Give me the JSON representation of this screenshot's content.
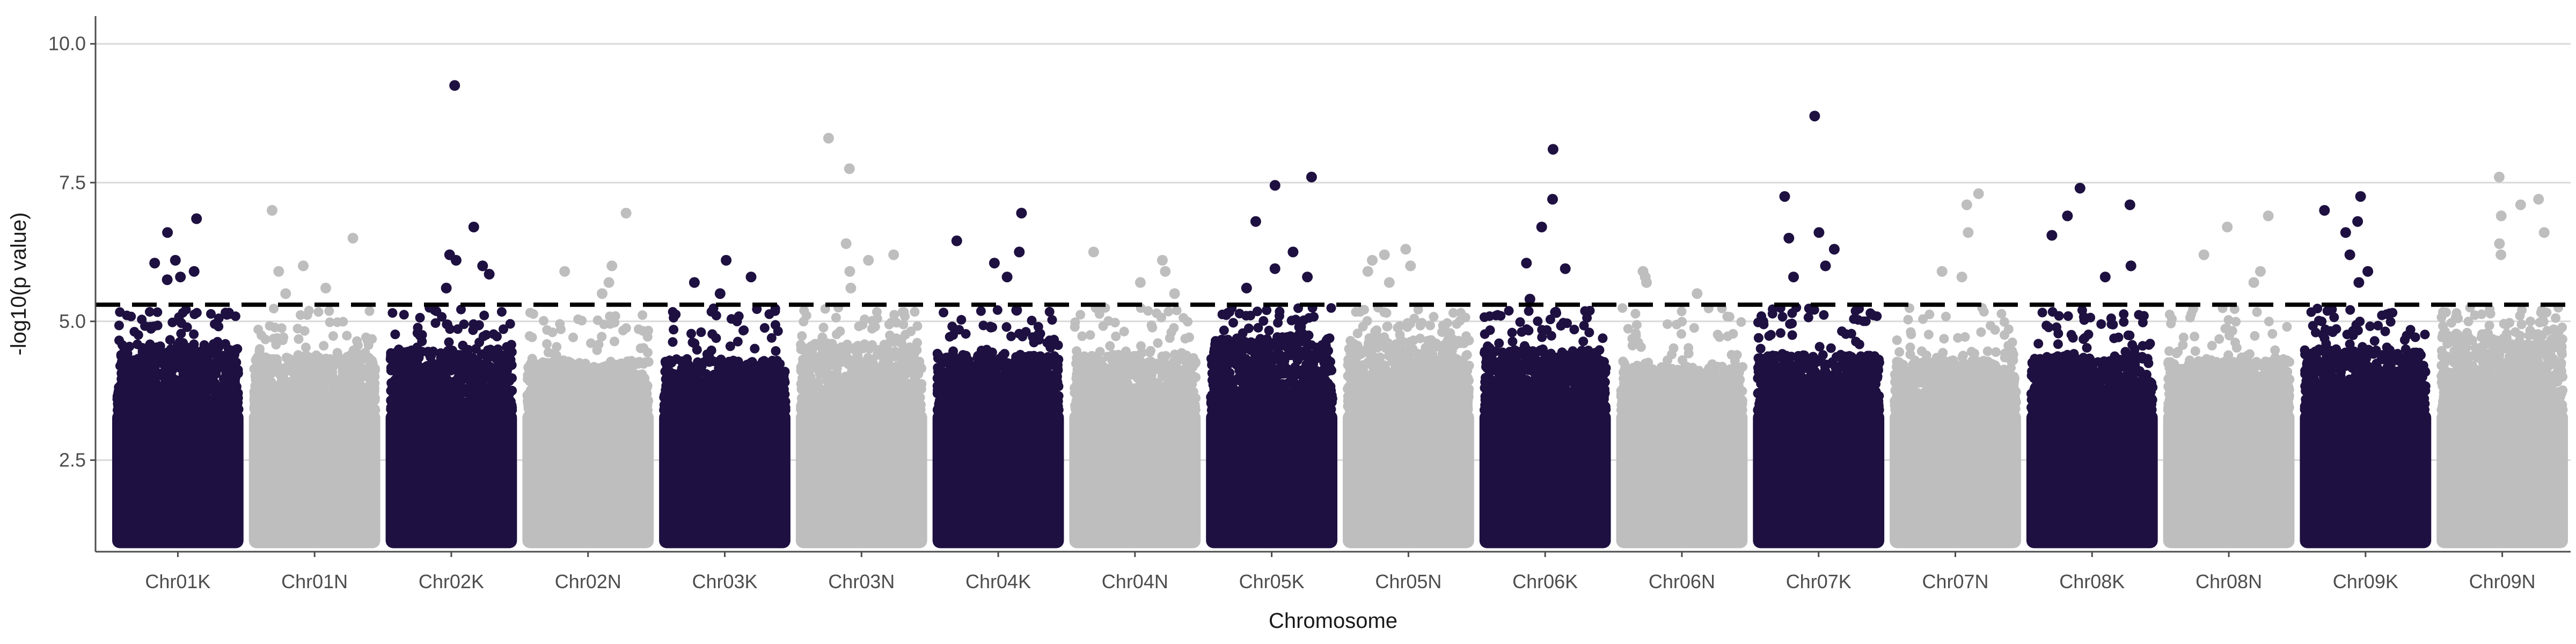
{
  "chart_data": {
    "type": "scatter",
    "subtype": "manhattan",
    "title": "",
    "xlabel": "Chromosome",
    "ylabel": "-log10(p value)",
    "ylim": [
      0.85,
      10.5
    ],
    "yticks": [
      2.5,
      5.0,
      7.5,
      10.0
    ],
    "ytick_labels": [
      "2.5",
      "5.0",
      "7.5",
      "10.0"
    ],
    "grid": "horizontal major lines",
    "legend": "none",
    "threshold": 5.3,
    "threshold_style": "dashed black line",
    "min_plotted_value": 1.0,
    "colors": {
      "odd": "#1e1040",
      "even": "#bebebe",
      "threshold": "#000000",
      "grid": "#d9d9d9",
      "axis": "#4d4d4d"
    },
    "categories": [
      "Chr01K",
      "Chr01N",
      "Chr02K",
      "Chr02N",
      "Chr03K",
      "Chr03N",
      "Chr04K",
      "Chr04N",
      "Chr05K",
      "Chr05N",
      "Chr06K",
      "Chr06N",
      "Chr07K",
      "Chr07N",
      "Chr08K",
      "Chr08N",
      "Chr09K",
      "Chr09N"
    ],
    "series": [
      {
        "chrom": "Chr01K",
        "bulk_max": 4.6,
        "peaks": [
          6.85,
          6.6,
          6.1,
          6.05,
          5.9,
          5.8,
          5.75
        ]
      },
      {
        "chrom": "Chr01N",
        "bulk_max": 4.4,
        "peaks": [
          7.0,
          6.5,
          6.0,
          5.9,
          5.6,
          5.5
        ]
      },
      {
        "chrom": "Chr02K",
        "bulk_max": 4.5,
        "peaks": [
          9.25,
          6.7,
          6.2,
          6.1,
          6.0,
          5.85,
          5.6
        ]
      },
      {
        "chrom": "Chr02N",
        "bulk_max": 4.3,
        "peaks": [
          6.95,
          6.0,
          5.9,
          5.7,
          5.5
        ]
      },
      {
        "chrom": "Chr03K",
        "bulk_max": 4.3,
        "peaks": [
          6.1,
          5.8,
          5.7,
          5.5
        ]
      },
      {
        "chrom": "Chr03N",
        "bulk_max": 4.6,
        "peaks": [
          8.3,
          7.75,
          6.4,
          6.2,
          6.1,
          5.9,
          5.6
        ]
      },
      {
        "chrom": "Chr04K",
        "bulk_max": 4.4,
        "peaks": [
          6.95,
          6.45,
          6.25,
          6.05,
          5.8,
          5.2
        ]
      },
      {
        "chrom": "Chr04N",
        "bulk_max": 4.4,
        "peaks": [
          6.25,
          6.1,
          5.9,
          5.7,
          5.5
        ]
      },
      {
        "chrom": "Chr05K",
        "bulk_max": 4.7,
        "peaks": [
          7.6,
          7.45,
          6.8,
          6.25,
          5.95,
          5.8,
          5.6
        ]
      },
      {
        "chrom": "Chr05N",
        "bulk_max": 4.7,
        "peaks": [
          6.3,
          6.2,
          6.1,
          6.0,
          5.9,
          5.7
        ]
      },
      {
        "chrom": "Chr06K",
        "bulk_max": 4.5,
        "peaks": [
          8.1,
          7.2,
          6.7,
          6.05,
          5.95,
          5.4
        ]
      },
      {
        "chrom": "Chr06N",
        "bulk_max": 4.2,
        "peaks": [
          5.9,
          5.8,
          5.7,
          5.5
        ]
      },
      {
        "chrom": "Chr07K",
        "bulk_max": 4.4,
        "peaks": [
          8.7,
          7.25,
          6.6,
          6.5,
          6.3,
          6.0,
          5.8
        ]
      },
      {
        "chrom": "Chr07N",
        "bulk_max": 4.3,
        "peaks": [
          7.3,
          7.1,
          6.6,
          5.9,
          5.8
        ]
      },
      {
        "chrom": "Chr08K",
        "bulk_max": 4.4,
        "peaks": [
          7.4,
          7.1,
          6.9,
          6.55,
          6.0,
          5.8
        ]
      },
      {
        "chrom": "Chr08N",
        "bulk_max": 4.3,
        "peaks": [
          6.9,
          6.7,
          6.2,
          5.9,
          5.7
        ]
      },
      {
        "chrom": "Chr09K",
        "bulk_max": 4.5,
        "peaks": [
          7.25,
          7.0,
          6.8,
          6.6,
          6.2,
          5.9,
          5.7
        ]
      },
      {
        "chrom": "Chr09N",
        "bulk_max": 4.8,
        "peaks": [
          7.6,
          7.2,
          7.1,
          6.9,
          6.6,
          6.4,
          6.2
        ]
      }
    ]
  }
}
